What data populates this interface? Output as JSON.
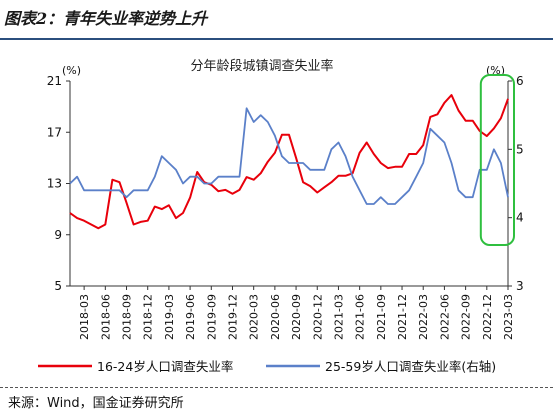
{
  "figure": {
    "title": "图表2：青年失业率逆势上升",
    "source": "来源：Wind，国金证券研究所"
  },
  "chart_data": {
    "type": "line",
    "title": "分年龄段城镇调查失业率",
    "left_axis": {
      "unit": "(%)",
      "ylim": [
        5,
        21
      ],
      "ticks": [
        5,
        9,
        13,
        17,
        21
      ]
    },
    "right_axis": {
      "unit": "(%)",
      "ylim": [
        3,
        6
      ],
      "ticks": [
        3,
        4,
        5,
        6
      ]
    },
    "x_ticks": [
      "2018-03",
      "2018-06",
      "2018-09",
      "2018-12",
      "2019-03",
      "2019-06",
      "2019-09",
      "2019-12",
      "2020-03",
      "2020-06",
      "2020-09",
      "2020-12",
      "2021-03",
      "2021-06",
      "2021-09",
      "2021-12",
      "2022-03",
      "2022-06",
      "2022-09",
      "2022-12",
      "2023-03"
    ],
    "x": [
      "2018-01",
      "2018-02",
      "2018-03",
      "2018-04",
      "2018-05",
      "2018-06",
      "2018-07",
      "2018-08",
      "2018-09",
      "2018-10",
      "2018-11",
      "2018-12",
      "2019-01",
      "2019-02",
      "2019-03",
      "2019-04",
      "2019-05",
      "2019-06",
      "2019-07",
      "2019-08",
      "2019-09",
      "2019-10",
      "2019-11",
      "2019-12",
      "2020-01",
      "2020-02",
      "2020-03",
      "2020-04",
      "2020-05",
      "2020-06",
      "2020-07",
      "2020-08",
      "2020-09",
      "2020-10",
      "2020-11",
      "2020-12",
      "2021-01",
      "2021-02",
      "2021-03",
      "2021-04",
      "2021-05",
      "2021-06",
      "2021-07",
      "2021-08",
      "2021-09",
      "2021-10",
      "2021-11",
      "2021-12",
      "2022-01",
      "2022-02",
      "2022-03",
      "2022-04",
      "2022-05",
      "2022-06",
      "2022-07",
      "2022-08",
      "2022-09",
      "2022-10",
      "2022-11",
      "2022-12",
      "2023-01",
      "2023-02",
      "2023-03"
    ],
    "series": [
      {
        "name": "16-24岁人口调查失业率",
        "axis": "left",
        "color": "#e8000b",
        "values": [
          10.7,
          10.3,
          10.1,
          9.8,
          9.5,
          9.8,
          13.3,
          13.1,
          11.5,
          9.8,
          10.0,
          10.1,
          11.2,
          11.0,
          11.3,
          10.3,
          10.7,
          11.9,
          13.9,
          13.1,
          12.9,
          12.4,
          12.5,
          12.2,
          12.5,
          13.5,
          13.3,
          13.8,
          14.7,
          15.4,
          16.8,
          16.8,
          15.0,
          13.1,
          12.8,
          12.3,
          12.7,
          13.1,
          13.6,
          13.6,
          13.8,
          15.4,
          16.2,
          15.3,
          14.6,
          14.2,
          14.3,
          14.3,
          15.3,
          15.3,
          16.0,
          18.2,
          18.4,
          19.3,
          19.9,
          18.7,
          17.9,
          17.9,
          17.1,
          16.7,
          17.3,
          18.1,
          19.6
        ]
      },
      {
        "name": "25-59岁人口调查失业率(右轴)",
        "axis": "right",
        "color": "#5b80c9",
        "values": [
          4.5,
          4.6,
          4.4,
          4.4,
          4.4,
          4.4,
          4.4,
          4.4,
          4.3,
          4.4,
          4.4,
          4.4,
          4.6,
          4.9,
          4.8,
          4.7,
          4.5,
          4.6,
          4.6,
          4.5,
          4.5,
          4.6,
          4.6,
          4.6,
          4.6,
          5.6,
          5.4,
          5.5,
          5.4,
          5.2,
          4.9,
          4.8,
          4.8,
          4.8,
          4.7,
          4.7,
          4.7,
          5.0,
          5.1,
          4.9,
          4.6,
          4.4,
          4.2,
          4.2,
          4.3,
          4.2,
          4.2,
          4.3,
          4.4,
          4.6,
          4.8,
          5.3,
          5.2,
          5.1,
          4.8,
          4.4,
          4.3,
          4.3,
          4.7,
          4.7,
          5.0,
          4.8,
          4.3
        ]
      }
    ],
    "annotation": {
      "shape": "rounded-rectangle",
      "color": "#2fbf3f"
    }
  }
}
